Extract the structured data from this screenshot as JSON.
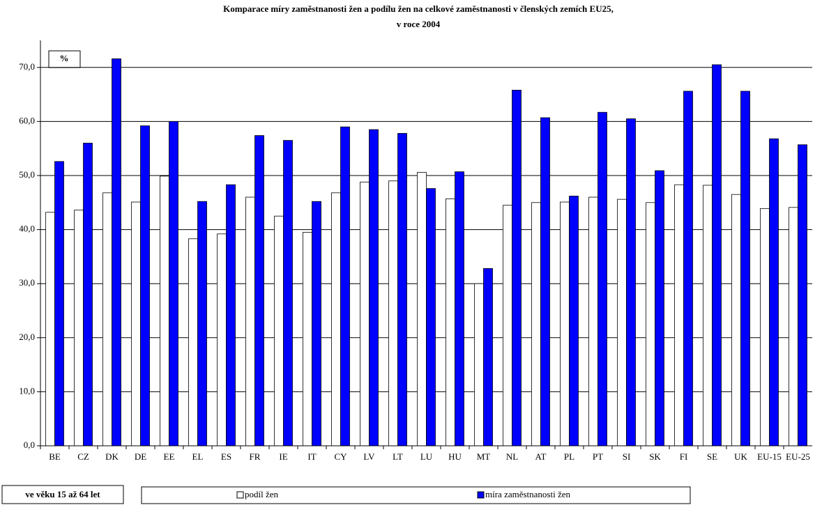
{
  "chart_data": {
    "type": "bar",
    "title": [
      "Komparace míry zaměstnanosti žen a podílu žen na celkové zaměstnanosti v členských zemích EU25,",
      "v roce 2004"
    ],
    "unit_label": "%",
    "note": "ve věku 15 až 64 let",
    "categories": [
      "BE",
      "CZ",
      "DK",
      "DE",
      "EE",
      "EL",
      "ES",
      "FR",
      "IE",
      "IT",
      "CY",
      "LV",
      "LT",
      "LU",
      "HU",
      "MT",
      "NL",
      "AT",
      "PL",
      "PT",
      "SI",
      "SK",
      "FI",
      "SE",
      "UK",
      "EU-15",
      "EU-25"
    ],
    "series": [
      {
        "name": "podíl žen",
        "color": "#ffffff",
        "values": [
          43.2,
          43.6,
          46.8,
          45.1,
          49.9,
          38.3,
          39.2,
          46.0,
          42.5,
          39.5,
          46.8,
          48.8,
          49.0,
          50.6,
          45.7,
          30.0,
          44.5,
          45.0,
          45.1,
          46.0,
          45.6,
          45.0,
          48.3,
          48.2,
          46.5,
          43.9,
          44.1
        ]
      },
      {
        "name": "míra zaměstnanosti žen",
        "color": "#0000ff",
        "values": [
          52.6,
          56.0,
          71.6,
          59.2,
          60.0,
          45.2,
          48.3,
          57.4,
          56.5,
          45.2,
          59.0,
          58.5,
          57.8,
          47.6,
          50.7,
          32.8,
          65.8,
          60.7,
          46.2,
          61.7,
          60.5,
          50.9,
          65.6,
          70.5,
          65.6,
          56.8,
          55.7
        ]
      }
    ],
    "ylim": [
      0,
      75
    ],
    "yticks": [
      {
        "value": 0,
        "label": "0,0"
      },
      {
        "value": 10,
        "label": "10,0"
      },
      {
        "value": 20,
        "label": "20,0"
      },
      {
        "value": 30,
        "label": "30,0"
      },
      {
        "value": 40,
        "label": "40,0"
      },
      {
        "value": 50,
        "label": "50,0"
      },
      {
        "value": 60,
        "label": "60,0"
      },
      {
        "value": 70,
        "label": "70,0"
      }
    ],
    "grid": true
  }
}
